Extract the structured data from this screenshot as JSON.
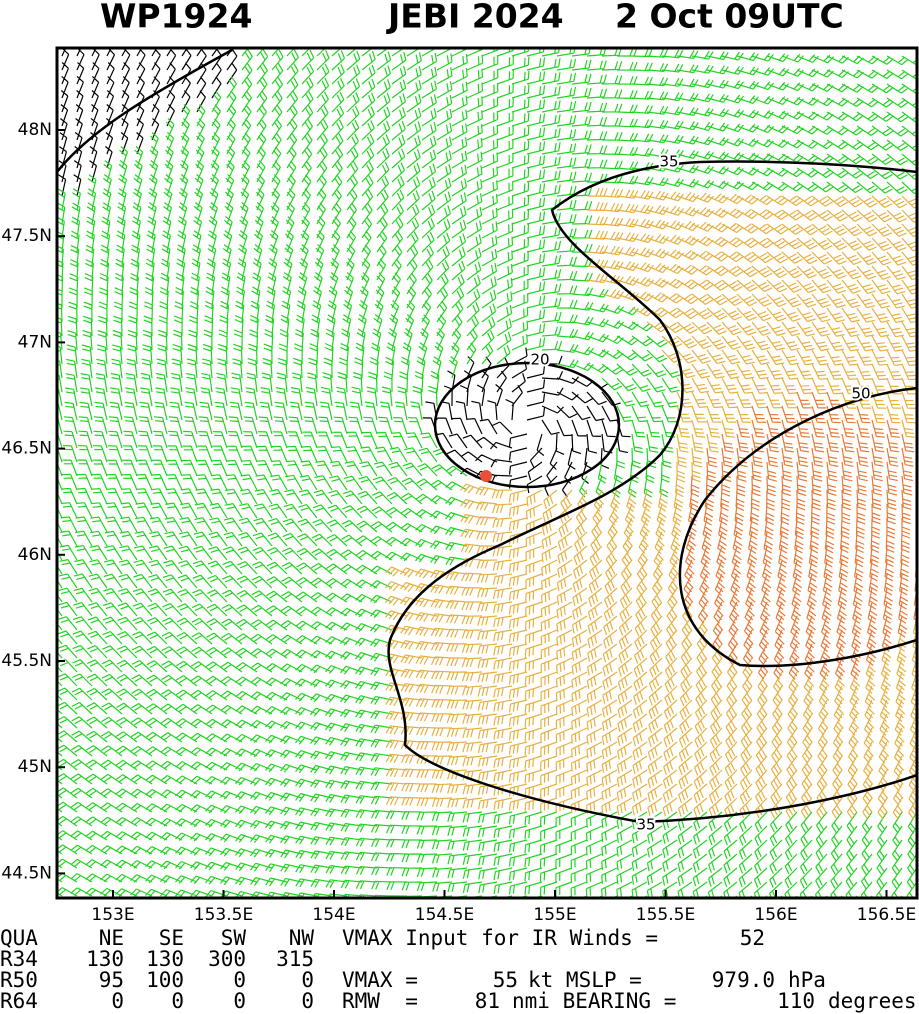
{
  "header": {
    "storm_id": "WP1924",
    "storm_name": "JEBI 2024",
    "time": "2 Oct 09UTC"
  },
  "map": {
    "lat_labels": [
      "48N",
      "47.5N",
      "47N",
      "46.5N",
      "46N",
      "45.5N",
      "45N",
      "44.5N"
    ],
    "lon_labels": [
      "153E",
      "153.5E",
      "154E",
      "154.5E",
      "155E",
      "155.5E",
      "156E",
      "156.5E"
    ],
    "contour_labels": [
      "35",
      "20",
      "50",
      "35"
    ]
  },
  "table": {
    "rows": [
      [
        "QUA",
        "NE",
        "SE",
        "SW",
        "NW",
        "VMAX Input for IR Winds =",
        "52"
      ],
      [
        "R34",
        "130",
        "130",
        "300",
        "315"
      ],
      [
        "R50",
        "95",
        "100",
        "0",
        "0",
        "VMAX =",
        "55",
        "kt MSLP =",
        "979.0",
        "hPa"
      ],
      [
        "R64",
        "0",
        "0",
        "0",
        "0",
        "RMW  =",
        "81",
        "nmi BEARING =",
        "110",
        "degrees"
      ]
    ]
  }
}
